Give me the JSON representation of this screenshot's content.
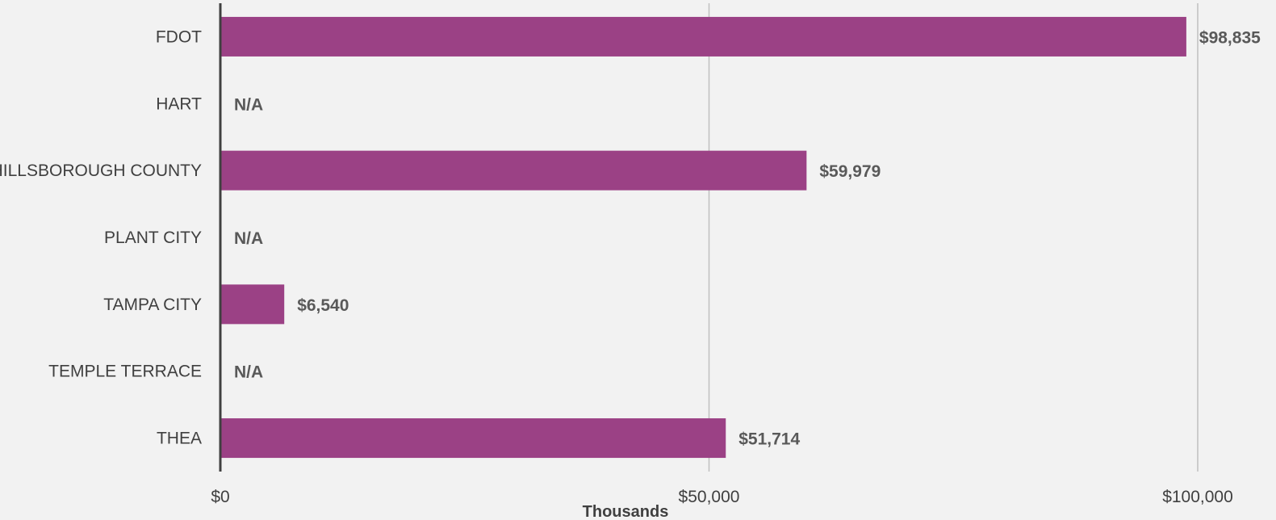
{
  "chart_data": {
    "type": "bar",
    "orientation": "horizontal",
    "categories": [
      "FDOT",
      "HART",
      "HILLSBOROUGH COUNTY",
      "PLANT CITY",
      "TAMPA CITY",
      "TEMPLE TERRACE",
      "THEA"
    ],
    "values": [
      98835,
      null,
      59979,
      null,
      6540,
      null,
      51714
    ],
    "data_labels": [
      "$98,835",
      "N/A",
      "$59,979",
      "N/A",
      "$6,540",
      "N/A",
      "$51,714"
    ],
    "xlim": [
      0,
      100000
    ],
    "x_ticks": [
      0,
      50000,
      100000
    ],
    "x_tick_labels": [
      "$0",
      "$50,000",
      "$100,000"
    ],
    "xlabel": "Thousands",
    "grid": "vertical",
    "legend": "none",
    "bar_color": "#9b4185"
  }
}
